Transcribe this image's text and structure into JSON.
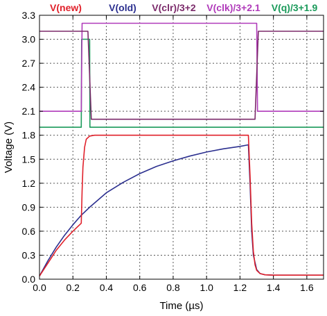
{
  "chart_data": {
    "type": "line",
    "xlabel": "Time (µs)",
    "ylabel": "Voltage (V)",
    "xlim": [
      0,
      1.7
    ],
    "ylim": [
      0,
      3.3
    ],
    "xticks": [
      "0.0",
      "0.2",
      "0.4",
      "0.6",
      "0.8",
      "1.0",
      "1.2",
      "1.4",
      "1.6"
    ],
    "yticks": [
      "0.0",
      "0.3",
      "0.6",
      "0.9",
      "1.2",
      "1.5",
      "1.8",
      "2.1",
      "2.4",
      "2.7",
      "3.0",
      "3.3"
    ],
    "grid": true,
    "legend_position": "top",
    "series": [
      {
        "name": "V(new)",
        "color": "#e0202a",
        "x": [
          0.0,
          0.05,
          0.1,
          0.15,
          0.2,
          0.25,
          0.255,
          0.26,
          0.27,
          0.28,
          0.3,
          0.33,
          1.25,
          1.26,
          1.27,
          1.28,
          1.29,
          1.3,
          1.32,
          1.35,
          1.4,
          1.7
        ],
        "y": [
          0.04,
          0.2,
          0.36,
          0.49,
          0.6,
          0.7,
          1.1,
          1.4,
          1.65,
          1.75,
          1.79,
          1.8,
          1.8,
          1.3,
          0.7,
          0.35,
          0.18,
          0.11,
          0.07,
          0.055,
          0.05,
          0.05
        ]
      },
      {
        "name": "V(old)",
        "color": "#2b2f8f",
        "x": [
          0.0,
          0.05,
          0.1,
          0.15,
          0.2,
          0.25,
          0.3,
          0.4,
          0.5,
          0.6,
          0.7,
          0.8,
          0.9,
          1.0,
          1.1,
          1.2,
          1.25,
          1.26,
          1.27,
          1.28,
          1.3,
          1.32,
          1.35,
          1.4,
          1.7
        ],
        "y": [
          0.04,
          0.23,
          0.4,
          0.55,
          0.68,
          0.8,
          0.9,
          1.08,
          1.21,
          1.32,
          1.41,
          1.48,
          1.54,
          1.59,
          1.63,
          1.66,
          1.68,
          1.2,
          0.6,
          0.3,
          0.12,
          0.07,
          0.055,
          0.05,
          0.05
        ]
      },
      {
        "name": "V(clr)/3+2",
        "color": "#7b2a6a",
        "x": [
          0.0,
          0.29,
          0.31,
          1.29,
          1.31,
          1.7
        ],
        "y": [
          3.1,
          3.1,
          2.0,
          2.0,
          3.1,
          3.1
        ]
      },
      {
        "name": "V(clk)/3+2.1",
        "color": "#b03aba",
        "x": [
          0.0,
          0.25,
          0.255,
          1.3,
          1.305,
          1.7
        ],
        "y": [
          2.1,
          2.1,
          3.2,
          3.2,
          2.1,
          2.1
        ]
      },
      {
        "name": "V(q)/3+1.9",
        "color": "#1a9a5a",
        "x": [
          0.0,
          0.25,
          0.252,
          0.3,
          0.302,
          1.7
        ],
        "y": [
          1.9,
          1.9,
          3.0,
          3.0,
          1.9,
          1.9
        ]
      }
    ]
  }
}
